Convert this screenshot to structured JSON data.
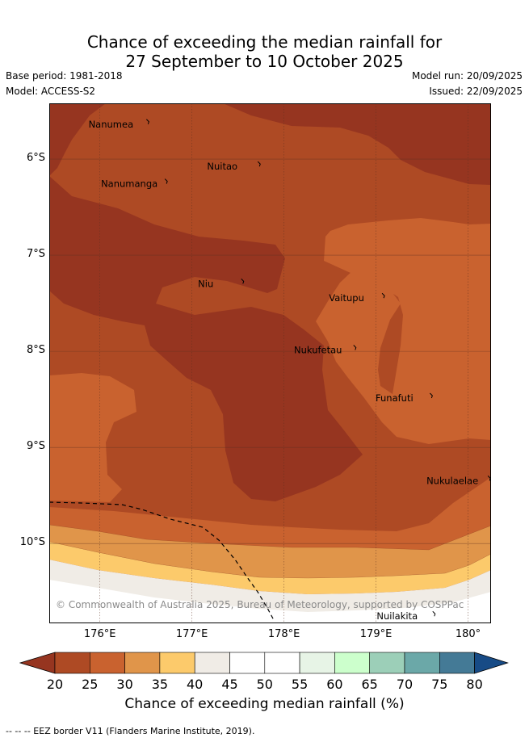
{
  "header": {
    "title_line1": "Chance of exceeding the median rainfall for",
    "title_line2": "27 September to 10 October 2025",
    "base_period": "Base period: 1981-2018",
    "model": "Model: ACCESS-S2",
    "model_run": "Model run: 20/09/2025",
    "issued": "Issued: 22/09/2025"
  },
  "map": {
    "lon_range": [
      175.45,
      180.25
    ],
    "lat_range": [
      -10.83,
      -5.42
    ],
    "lat_ticks": [
      {
        "value": -6,
        "label": "6°S"
      },
      {
        "value": -7,
        "label": "7°S"
      },
      {
        "value": -8,
        "label": "8°S"
      },
      {
        "value": -9,
        "label": "9°S"
      },
      {
        "value": -10,
        "label": "10°S"
      }
    ],
    "lon_ticks": [
      {
        "value": 176,
        "label": "176°E"
      },
      {
        "value": 177,
        "label": "177°E"
      },
      {
        "value": 178,
        "label": "178°E"
      },
      {
        "value": 179,
        "label": "179°E"
      },
      {
        "value": 180,
        "label": "180°"
      }
    ],
    "places": [
      {
        "name": "Nanumea",
        "lon": 176.12,
        "lat": -5.67
      },
      {
        "name": "Nuitao",
        "lon": 177.33,
        "lat": -6.11
      },
      {
        "name": "Nanumanga",
        "lon": 176.32,
        "lat": -6.29
      },
      {
        "name": "Niu",
        "lon": 177.15,
        "lat": -7.33
      },
      {
        "name": "Vaitupu",
        "lon": 178.68,
        "lat": -7.48
      },
      {
        "name": "Nukufetau",
        "lon": 178.37,
        "lat": -8.02
      },
      {
        "name": "Funafuti",
        "lon": 179.2,
        "lat": -8.52
      },
      {
        "name": "Nukulaelae",
        "lon": 179.83,
        "lat": -9.38
      },
      {
        "name": "Nuilakita",
        "lon": 179.23,
        "lat": -10.79
      }
    ],
    "credit": "© Commonwealth of Australia 2025, Bureau of Meteorology, supported by COSPPac"
  },
  "colorbar": {
    "title": "Chance of exceeding median rainfall (%)",
    "levels": [
      20,
      25,
      30,
      35,
      40,
      45,
      50,
      55,
      60,
      65,
      70,
      75,
      80
    ],
    "colors": [
      "#ae4a24",
      "#c9622f",
      "#e0954a",
      "#fcca6b",
      "#f0ece6",
      "#ffffff",
      "#ffffff",
      "#e7f4e6",
      "#ccffcc",
      "#9ccfb8",
      "#6ba8a8",
      "#447a96"
    ],
    "under_color": "#963520",
    "over_color": "#174b86"
  },
  "footer": {
    "eez_note": "-- -- -- EEZ border V11 (Flanders Marine Institute, 2019)."
  }
}
